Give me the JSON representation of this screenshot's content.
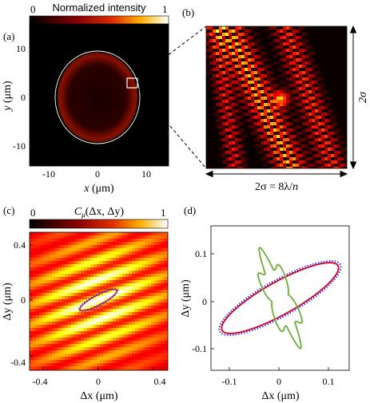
{
  "colorbar_top": {
    "min": "0",
    "max": "1",
    "title": "Normalized intensity"
  },
  "colorbar_bottom": {
    "min": "0",
    "max": "1",
    "title_main": "C",
    "title_sub": "μ",
    "title_args": "(Δx, Δy)"
  },
  "colors": {
    "hot_low": "#000000",
    "hot_mid": "#d42a00",
    "hot_high": "#ffffff",
    "fit_red": "#d8001c",
    "fit_blue": "#3a3cff",
    "green": "#6aae3a"
  },
  "panels": {
    "a": {
      "label": "(a)",
      "xlabel_var": "x",
      "xlabel_unit": "(μm)",
      "ylabel_var": "y",
      "ylabel_unit": "(μm)",
      "xticks": [
        "-10",
        "0",
        "10"
      ],
      "yticks": [
        "10",
        "0",
        "-10"
      ]
    },
    "b": {
      "label": "(b)",
      "side_label": "2σ",
      "bottom_label_left": "2σ = 8λ/",
      "bottom_label_n": "n"
    },
    "c": {
      "label": "(c)",
      "xlabel": "Δx (μm)",
      "ylabel": "Δy (μm)",
      "xticks": [
        "-0.4",
        "0",
        "0.4"
      ],
      "yticks": [
        "0.4",
        "0",
        "-0.4"
      ]
    },
    "d": {
      "label": "(d)",
      "xlabel": "Δx (μm)",
      "ylabel": "Δy (μm)",
      "xticks": [
        "-0.1",
        "0",
        "0.1"
      ],
      "yticks": [
        "0.1",
        "0",
        "-0.1"
      ]
    }
  },
  "chart_data": [
    {
      "type": "heatmap",
      "panel": "a",
      "description_values": {
        "xlim": [
          -14,
          14
        ],
        "ylim": [
          -14,
          14
        ]
      }
    },
    {
      "type": "heatmap",
      "panel": "b"
    },
    {
      "type": "heatmap",
      "panel": "c",
      "xlim": [
        -0.5,
        0.5
      ],
      "ylim": [
        -0.5,
        0.5
      ]
    },
    {
      "type": "line",
      "panel": "d",
      "xlim": [
        -0.14,
        0.14
      ],
      "ylim": [
        -0.14,
        0.14
      ],
      "series": [
        {
          "color": "red",
          "semi_major": 0.133,
          "semi_minor": 0.032,
          "angle_deg": 28
        },
        {
          "color": "blue",
          "semi_major": 0.138,
          "semi_minor": 0.035,
          "angle_deg": 28
        },
        {
          "color": "green",
          "semi_major": 0.085,
          "semi_minor": 0.018,
          "angle_deg": 113
        }
      ]
    }
  ]
}
